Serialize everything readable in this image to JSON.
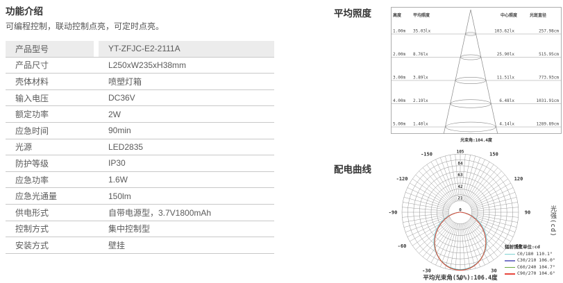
{
  "title": "功能介绍",
  "subtitle": "可编程控制，联动控制点亮，可定时点亮。",
  "spec_table": {
    "rows": [
      {
        "label": "产品型号",
        "value": "YT-ZFJC-E2-2111A"
      },
      {
        "label": "产品尺寸",
        "value": "L250xW235xH38mm"
      },
      {
        "label": "壳体材料",
        "value": "喷塑灯箱"
      },
      {
        "label": "输入电压",
        "value": "DC36V"
      },
      {
        "label": "额定功率",
        "value": "2W"
      },
      {
        "label": "应急时间",
        "value": "90min"
      },
      {
        "label": "光源",
        "value": "LED2835"
      },
      {
        "label": "防护等级",
        "value": "IP30"
      },
      {
        "label": "应急功率",
        "value": "1.6W"
      },
      {
        "label": "应急光通量",
        "value": "150lm"
      },
      {
        "label": "供电形式",
        "value": "自带电源型，3.7V1800mAh"
      },
      {
        "label": "控制方式",
        "value": "集中控制型"
      },
      {
        "label": "安装方式",
        "value": "壁挂"
      }
    ]
  },
  "headings": {
    "avg_illuminance": "平均照度",
    "distribution": "配电曲线"
  },
  "chart_data": [
    {
      "type": "table",
      "title": "平均照度",
      "columns": [
        "高度",
        "平均照度",
        "中心照度",
        "光斑直径"
      ],
      "rows": [
        {
          "height": "1.00m",
          "avg_lx": "35.03lx",
          "center_lx": "103.62lx",
          "spot_d": "257.98cm"
        },
        {
          "height": "2.00m",
          "avg_lx": "8.76lx",
          "center_lx": "25.90lx",
          "spot_d": "515.95cm"
        },
        {
          "height": "3.00m",
          "avg_lx": "3.89lx",
          "center_lx": "11.51lx",
          "spot_d": "773.93cm"
        },
        {
          "height": "4.00m",
          "avg_lx": "2.19lx",
          "center_lx": "6.48lx",
          "spot_d": "1031.91cm"
        },
        {
          "height": "5.00m",
          "avg_lx": "1.40lx",
          "center_lx": "4.14lx",
          "spot_d": "1289.89cm"
        }
      ],
      "footer": "光束角:104.4度"
    },
    {
      "type": "line",
      "polar": true,
      "title": "配电曲线",
      "ylabel": "光强(cd)",
      "radial_ticks": [
        0,
        21,
        42,
        63,
        84,
        105
      ],
      "radial_max": 105,
      "ring_step": 10.5,
      "spoke_step_deg": 5,
      "angle_labels": [
        0,
        30,
        60,
        90,
        120,
        150,
        -150,
        -120,
        -90,
        -60,
        -30
      ],
      "legend_title": "辐射强度单位:cd",
      "series": [
        {
          "name": "C0/180 110.1°",
          "beam_angle_deg": 110.1,
          "max_cd": 103.0,
          "color": "#7ed2d2"
        },
        {
          "name": "C30/210 106.0°",
          "beam_angle_deg": 106.0,
          "max_cd": 103.5,
          "color": "#7878c8"
        },
        {
          "name": "C60/240 104.7°",
          "beam_angle_deg": 104.7,
          "max_cd": 104.0,
          "color": "#6aa83e"
        },
        {
          "name": "C90/270 104.6°",
          "beam_angle_deg": 104.6,
          "max_cd": 104.5,
          "color": "#e8463c"
        }
      ],
      "footer": "平均光束角(50%):106.4度",
      "grid": true,
      "legend_position": "bottom-right"
    }
  ]
}
